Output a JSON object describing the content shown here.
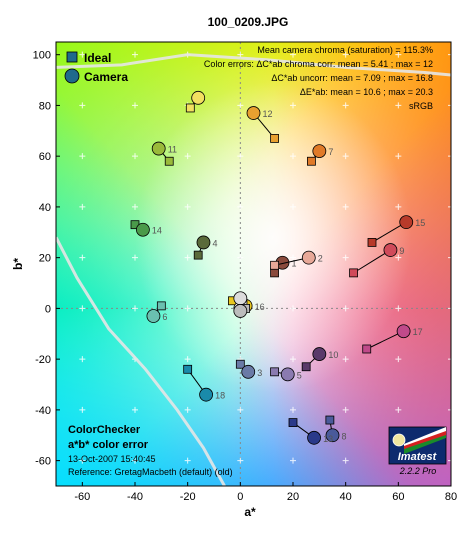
{
  "chart_data": {
    "type": "scatter",
    "title": "100_0209.JPG",
    "xlabel": "a*",
    "ylabel": "b*",
    "xlim": [
      -70,
      80
    ],
    "ylim": [
      -70,
      105
    ],
    "xticks": [
      "-60",
      "-40",
      "-20",
      "0",
      "20",
      "40",
      "60",
      "80"
    ],
    "xtick_values": [
      -60,
      -40,
      -20,
      0,
      20,
      40,
      60,
      80
    ],
    "yticks": [
      "100",
      "80",
      "60",
      "40",
      "20",
      "0",
      "-20",
      "-40",
      "-60"
    ],
    "ytick_values": [
      100,
      80,
      60,
      40,
      20,
      0,
      -20,
      -40,
      -60
    ],
    "grid": true,
    "legend": {
      "placement": "top-left",
      "items": [
        {
          "label": "Ideal",
          "marker": "square",
          "color": "#1f6a8c"
        },
        {
          "label": "Camera",
          "marker": "circle",
          "color": "#1f6a8c"
        }
      ]
    },
    "stats": [
      "Mean camera chroma (saturation) = 115.3%",
      "Color errors: ΔC*ab chroma corr:  mean = 5.41 ;  max = 12",
      "ΔC*ab uncorr:  mean = 7.09 ;  max = 16.8",
      "ΔE*ab:  mean = 10.6 ;  max = 20.3",
      "sRGB"
    ],
    "info": {
      "line1": "ColorChecker",
      "line2": "a*b* color error",
      "date": "13-Oct-2007 15:40:45",
      "reference": "Reference: GretagMacbeth (default) (old)"
    },
    "logo": {
      "name": "Imatest",
      "version": "2.2.2  Pro"
    },
    "patches": [
      {
        "label": "1",
        "ideal": [
          13,
          14
        ],
        "camera": [
          16,
          18
        ],
        "color": "#8a4a3c"
      },
      {
        "label": "2",
        "ideal": [
          13,
          17
        ],
        "camera": [
          26,
          20
        ],
        "color": "#e8a898"
      },
      {
        "label": "3",
        "ideal": [
          0,
          -22
        ],
        "camera": [
          3,
          -25
        ],
        "color": "#6a7aa6"
      },
      {
        "label": "4",
        "ideal": [
          -16,
          21
        ],
        "camera": [
          -14,
          26
        ],
        "color": "#5a6a3a"
      },
      {
        "label": "5",
        "ideal": [
          13,
          -25
        ],
        "camera": [
          18,
          -26
        ],
        "color": "#8a7ab0"
      },
      {
        "label": "6",
        "ideal": [
          -30,
          1
        ],
        "camera": [
          -33,
          -3
        ],
        "color": "#6ac0b0"
      },
      {
        "label": "7",
        "ideal": [
          27,
          58
        ],
        "camera": [
          30,
          62
        ],
        "color": "#e07a28"
      },
      {
        "label": "8",
        "ideal": [
          34,
          -44
        ],
        "camera": [
          35,
          -50
        ],
        "color": "#4a5a9a"
      },
      {
        "label": "9",
        "ideal": [
          43,
          14
        ],
        "camera": [
          57,
          23
        ],
        "color": "#d04a5a"
      },
      {
        "label": "10",
        "ideal": [
          25,
          -23
        ],
        "camera": [
          30,
          -18
        ],
        "color": "#5a3a6a"
      },
      {
        "label": "11",
        "ideal": [
          -27,
          58
        ],
        "camera": [
          -31,
          63
        ],
        "color": "#9aba3a"
      },
      {
        "label": "12",
        "ideal": [
          13,
          67
        ],
        "camera": [
          5,
          77
        ],
        "color": "#e8a030"
      },
      {
        "label": "13",
        "ideal": [
          20,
          -45
        ],
        "camera": [
          28,
          -51
        ],
        "color": "#2a3a8a"
      },
      {
        "label": "14",
        "ideal": [
          -40,
          33
        ],
        "camera": [
          -37,
          31
        ],
        "color": "#4a9a4a"
      },
      {
        "label": "15",
        "ideal": [
          50,
          26
        ],
        "camera": [
          63,
          34
        ],
        "color": "#b83a2a"
      },
      {
        "label": "16",
        "ideal": [
          -3,
          3
        ],
        "camera": [
          2,
          1
        ],
        "color": "#e8c820"
      },
      {
        "label": "17",
        "ideal": [
          48,
          -16
        ],
        "camera": [
          62,
          -9
        ],
        "color": "#c04a8a"
      },
      {
        "label": "18",
        "ideal": [
          -20,
          -24
        ],
        "camera": [
          -13,
          -34
        ],
        "color": "#1a8aaa"
      },
      {
        "label": "",
        "ideal": [
          -19,
          79
        ],
        "camera": [
          -16,
          83
        ],
        "color": "#f2e060"
      },
      {
        "label": "",
        "ideal": [
          0,
          0
        ],
        "camera": [
          0,
          0
        ],
        "color": "#ffffff"
      },
      {
        "label": "",
        "ideal": [
          1,
          2
        ],
        "camera": [
          0,
          4
        ],
        "color": "#dcdcdc"
      },
      {
        "label": "",
        "ideal": [
          2,
          0
        ],
        "camera": [
          0,
          -1
        ],
        "color": "#bcbcbc"
      }
    ],
    "gamut_boundary": [
      [
        [
          -70,
          95
        ],
        [
          -45,
          96
        ],
        [
          -20,
          100
        ],
        [
          10,
          98
        ],
        [
          40,
          95
        ],
        [
          70,
          93
        ],
        [
          80,
          92
        ]
      ],
      [
        [
          -70,
          28
        ],
        [
          -62,
          12
        ],
        [
          -50,
          -8
        ],
        [
          -36,
          -24
        ],
        [
          -24,
          -40
        ],
        [
          -14,
          -55
        ],
        [
          -6,
          -70
        ]
      ]
    ]
  }
}
